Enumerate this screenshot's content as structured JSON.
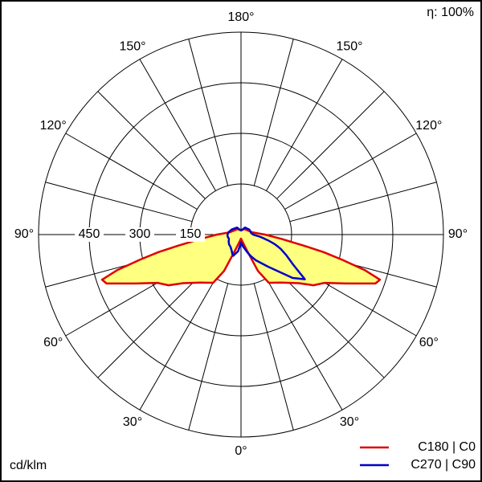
{
  "chart_data": {
    "type": "polar",
    "efficiency": "η: 100%",
    "unit": "cd/klm",
    "rlim": [
      0,
      600
    ],
    "rticks": [
      150,
      300,
      450
    ],
    "xticks": [
      {
        "value": -150,
        "label": "150°"
      },
      {
        "value": -120,
        "label": "120°"
      },
      {
        "value": -90,
        "label": "90°"
      },
      {
        "value": -60,
        "label": "60°"
      },
      {
        "value": -30,
        "label": "30°"
      },
      {
        "value": 0,
        "label": "0°"
      },
      {
        "value": 30,
        "label": "30°"
      },
      {
        "value": 60,
        "label": "60°"
      },
      {
        "value": 90,
        "label": "90°"
      },
      {
        "value": 120,
        "label": "120°"
      },
      {
        "value": 150,
        "label": "150°"
      },
      {
        "value": 180,
        "label": "180°"
      }
    ],
    "x": [
      -180,
      -150,
      -120,
      -100,
      -90,
      -84,
      -80,
      -78,
      -76,
      -74,
      -72,
      -70,
      -65,
      -60,
      -55,
      -50,
      -40,
      -30,
      -25,
      -20,
      -10,
      0,
      10,
      20,
      25,
      30,
      40,
      50,
      55,
      60,
      65,
      70,
      72,
      74,
      76,
      78,
      80,
      84,
      90,
      100,
      120,
      150,
      180
    ],
    "series": [
      {
        "name": "C180 | C0",
        "color": "#e00000",
        "fill": "#ffff80",
        "values": [
          12,
          19,
          24,
          36,
          71,
          119,
          190,
          250,
          310,
          381,
          433,
          424,
          343,
          286,
          262,
          224,
          186,
          165,
          119,
          48,
          19,
          12,
          19,
          48,
          119,
          165,
          186,
          224,
          262,
          286,
          343,
          424,
          433,
          381,
          310,
          250,
          190,
          119,
          71,
          36,
          24,
          19,
          12
        ]
      },
      {
        "name": "C270 | C90",
        "color": "#0000c8",
        "values": [
          12,
          24,
          31,
          38,
          40,
          40,
          40,
          39,
          39,
          38,
          38,
          38,
          40,
          42,
          44,
          46,
          48,
          55,
          62,
          67,
          50,
          24,
          36,
          57,
          72,
          88,
          124,
          200,
          231,
          179,
          150,
          126,
          115,
          105,
          92,
          82,
          71,
          55,
          36,
          30,
          29,
          24,
          12
        ]
      }
    ]
  }
}
